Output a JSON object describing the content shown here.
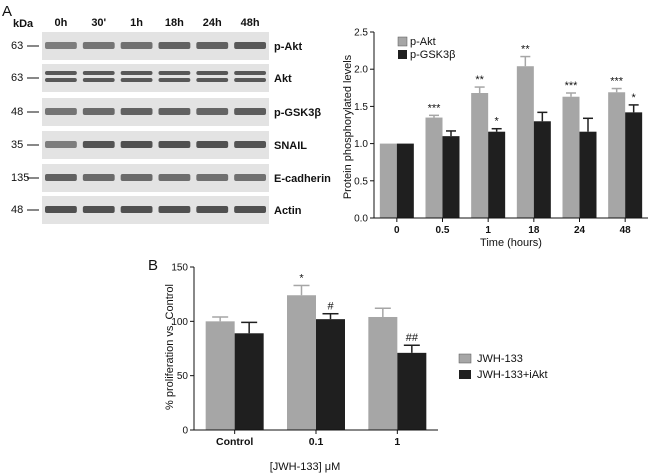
{
  "panel_a": {
    "label": "A",
    "blot": {
      "kda_header": "kDa",
      "timepoints": [
        "0h",
        "30'",
        "1h",
        "18h",
        "24h",
        "48h"
      ],
      "rows": [
        {
          "marker": "63",
          "protein": "p-Akt",
          "bands": 1,
          "intensity": [
            0.55,
            0.6,
            0.62,
            0.7,
            0.7,
            0.75
          ]
        },
        {
          "marker": "63",
          "protein": "Akt",
          "bands": 2,
          "intensity": [
            0.75,
            0.75,
            0.75,
            0.75,
            0.75,
            0.75
          ]
        },
        {
          "marker": "48",
          "protein": "p-GSK3β",
          "bands": 1,
          "intensity": [
            0.6,
            0.65,
            0.7,
            0.7,
            0.68,
            0.72
          ]
        },
        {
          "marker": "35",
          "protein": "SNAIL",
          "bands": 1,
          "intensity": [
            0.55,
            0.78,
            0.8,
            0.8,
            0.8,
            0.78
          ]
        },
        {
          "marker": "135",
          "protein": "E-cadherin",
          "bands": 1,
          "intensity": [
            0.7,
            0.65,
            0.66,
            0.64,
            0.62,
            0.62
          ]
        },
        {
          "marker": "48",
          "protein": "Actin",
          "bands": 1,
          "intensity": [
            0.8,
            0.8,
            0.8,
            0.8,
            0.8,
            0.8
          ]
        }
      ]
    }
  },
  "panel_b": {
    "label": "B"
  },
  "colors": {
    "series_light": "#a6a6a6",
    "series_dark": "#1f1f1f",
    "axis": "#111111"
  },
  "chart_data": [
    {
      "type": "bar",
      "panel": "A",
      "categories": [
        "0",
        "0.5",
        "1",
        "18",
        "24",
        "48"
      ],
      "series": [
        {
          "name": "p-Akt",
          "color": "#a6a6a6",
          "values": [
            1.0,
            1.35,
            1.68,
            2.04,
            1.63,
            1.69
          ],
          "errors": [
            0.0,
            0.03,
            0.08,
            0.13,
            0.05,
            0.05
          ]
        },
        {
          "name": "p-GSK3β",
          "color": "#1f1f1f",
          "values": [
            1.0,
            1.1,
            1.16,
            1.3,
            1.16,
            1.42
          ],
          "errors": [
            0.0,
            0.07,
            0.04,
            0.12,
            0.18,
            0.1
          ]
        }
      ],
      "annotations": [
        {
          "series": 0,
          "index": 1,
          "text": "***"
        },
        {
          "series": 0,
          "index": 2,
          "text": "**"
        },
        {
          "series": 1,
          "index": 2,
          "text": "*"
        },
        {
          "series": 0,
          "index": 3,
          "text": "**"
        },
        {
          "series": 0,
          "index": 4,
          "text": "***"
        },
        {
          "series": 0,
          "index": 5,
          "text": "***"
        },
        {
          "series": 1,
          "index": 5,
          "text": "*"
        }
      ],
      "xlabel": "Time (hours)",
      "ylabel": "Protein phosphorylated levels",
      "ylim": [
        0,
        2.5
      ],
      "yticks": [
        "0.0",
        "0.5",
        "1.0",
        "1.5",
        "2.0",
        "2.5"
      ],
      "legend_position": "top-left",
      "grid": false
    },
    {
      "type": "bar",
      "panel": "B",
      "categories": [
        "Control",
        "0.1",
        "1"
      ],
      "series": [
        {
          "name": "JWH-133",
          "color": "#a6a6a6",
          "values": [
            100,
            124,
            104
          ],
          "errors": [
            4,
            9,
            8
          ]
        },
        {
          "name": "JWH-133+iAkt",
          "color": "#1f1f1f",
          "values": [
            89,
            102,
            71
          ],
          "errors": [
            10,
            5,
            7
          ]
        }
      ],
      "annotations": [
        {
          "series": 0,
          "index": 1,
          "text": "*"
        },
        {
          "series": 1,
          "index": 1,
          "text": "#"
        },
        {
          "series": 1,
          "index": 2,
          "text": "##"
        }
      ],
      "xlabel": "[JWH-133] μM",
      "ylabel": "% proliferation vs. Control",
      "ylim": [
        0,
        150
      ],
      "yticks": [
        "0",
        "50",
        "100",
        "150"
      ],
      "legend_position": "right",
      "grid": false
    }
  ]
}
